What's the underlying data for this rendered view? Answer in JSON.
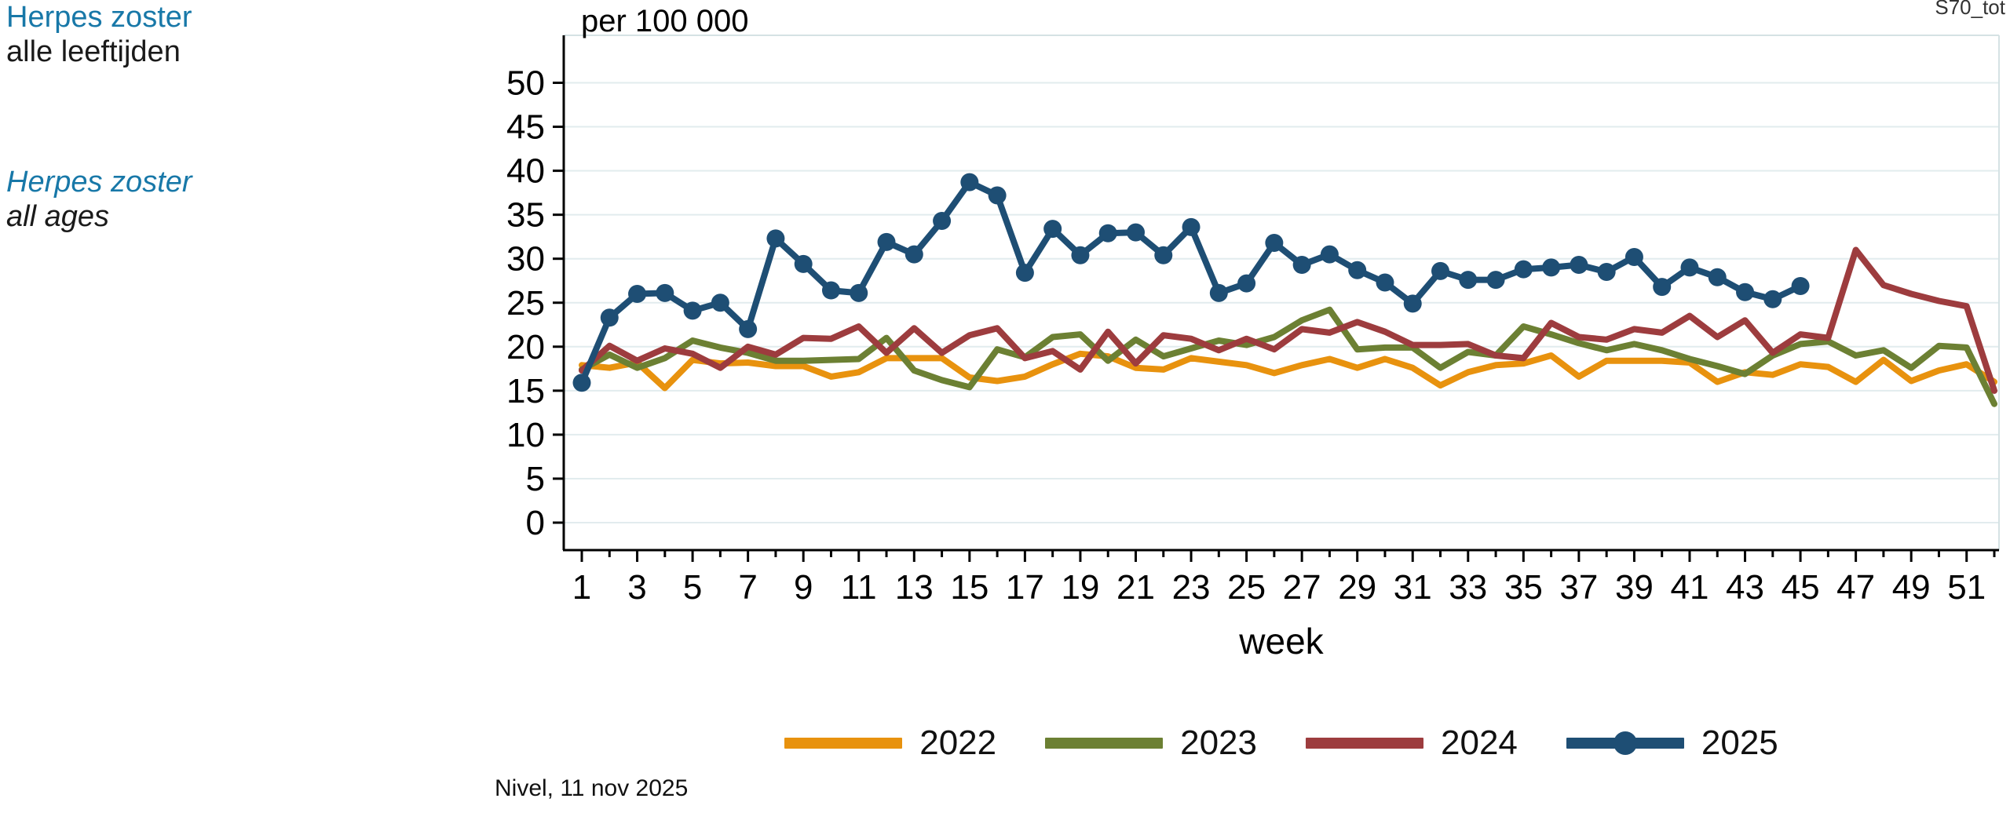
{
  "page": {
    "title_nl_line1": "Herpes zoster",
    "title_nl_line2": "alle leeftijden",
    "title_en_line1": "Herpes zoster",
    "title_en_line2": "all ages",
    "watermark": "S70_tot",
    "footer": "Nivel, 11 nov 2025"
  },
  "colors": {
    "title_blue": "#1878A8",
    "grid": "#E2ECEE",
    "axis": "#000000",
    "frame_faint": "#D5E2E4",
    "series_2022": "#E8920E",
    "series_2023": "#6C8033",
    "series_2024": "#9D3C3E",
    "series_2025": "#1E4E74"
  },
  "chart_data": {
    "type": "line",
    "title": "",
    "ylabel": "per 100 000",
    "xlabel": "week",
    "ylim": [
      0,
      50
    ],
    "ytick_step": 5,
    "yticks": [
      0,
      5,
      10,
      15,
      20,
      25,
      30,
      35,
      40,
      45,
      50
    ],
    "x_start": 1,
    "x_end": 52,
    "xticks_labeled": [
      1,
      3,
      5,
      7,
      9,
      11,
      13,
      15,
      17,
      19,
      21,
      23,
      25,
      27,
      29,
      31,
      33,
      35,
      37,
      39,
      41,
      43,
      45,
      47,
      49,
      51
    ],
    "grid": true,
    "legend_position": "bottom",
    "series": [
      {
        "name": "2022",
        "color_key": "series_2022",
        "markers": false,
        "values": [
          17.9,
          17.6,
          18.2,
          15.3,
          18.5,
          18.1,
          18.2,
          17.8,
          17.8,
          16.6,
          17.1,
          18.7,
          18.7,
          18.7,
          16.5,
          16.1,
          16.6,
          18.0,
          19.2,
          18.9,
          17.6,
          17.4,
          18.7,
          18.3,
          17.9,
          17.0,
          17.9,
          18.6,
          17.6,
          18.6,
          17.6,
          15.6,
          17.1,
          17.9,
          18.1,
          19.0,
          16.6,
          18.4,
          18.4,
          18.4,
          18.2,
          16.0,
          17.1,
          16.8,
          18.0,
          17.7,
          16.0,
          18.5,
          16.1,
          17.3,
          18.0,
          16.0
        ]
      },
      {
        "name": "2023",
        "color_key": "series_2023",
        "markers": false,
        "values": [
          17.4,
          19.1,
          17.6,
          18.7,
          20.7,
          19.9,
          19.3,
          18.4,
          18.4,
          18.5,
          18.6,
          21.0,
          17.3,
          16.2,
          15.4,
          19.7,
          18.8,
          21.1,
          21.4,
          18.4,
          20.8,
          18.9,
          19.8,
          20.7,
          20.2,
          21.1,
          23.0,
          24.2,
          19.7,
          19.9,
          19.9,
          17.6,
          19.4,
          19.0,
          22.3,
          21.4,
          20.4,
          19.6,
          20.3,
          19.6,
          18.6,
          17.8,
          16.9,
          19.0,
          20.3,
          20.6,
          19.0,
          19.6,
          17.6,
          20.1,
          19.9,
          13.5
        ]
      },
      {
        "name": "2024",
        "color_key": "series_2024",
        "markers": false,
        "values": [
          17.3,
          20.1,
          18.4,
          19.8,
          19.2,
          17.6,
          20.0,
          19.1,
          21.0,
          20.9,
          22.3,
          19.3,
          22.1,
          19.3,
          21.3,
          22.1,
          18.7,
          19.5,
          17.4,
          21.7,
          18.1,
          21.3,
          20.9,
          19.6,
          20.9,
          19.7,
          22.0,
          21.6,
          22.8,
          21.7,
          20.2,
          20.2,
          20.3,
          19.0,
          18.7,
          22.7,
          21.1,
          20.8,
          22.0,
          21.6,
          23.5,
          21.1,
          23.0,
          19.3,
          21.4,
          21.0,
          31.0,
          27.0,
          26.0,
          25.2,
          24.6,
          15.0
        ]
      },
      {
        "name": "2025",
        "color_key": "series_2025",
        "markers": true,
        "values": [
          15.9,
          23.3,
          26.0,
          26.1,
          24.1,
          25.0,
          22.0,
          32.3,
          29.4,
          26.4,
          26.1,
          31.9,
          30.5,
          34.3,
          38.7,
          37.2,
          28.4,
          33.4,
          30.4,
          32.9,
          33.0,
          30.4,
          33.6,
          26.1,
          27.2,
          31.8,
          29.3,
          30.5,
          28.7,
          27.3,
          24.9,
          28.6,
          27.6,
          27.6,
          28.8,
          29.0,
          29.3,
          28.5,
          30.2,
          26.8,
          29.0,
          27.9,
          26.2,
          25.4,
          26.9
        ]
      }
    ]
  }
}
